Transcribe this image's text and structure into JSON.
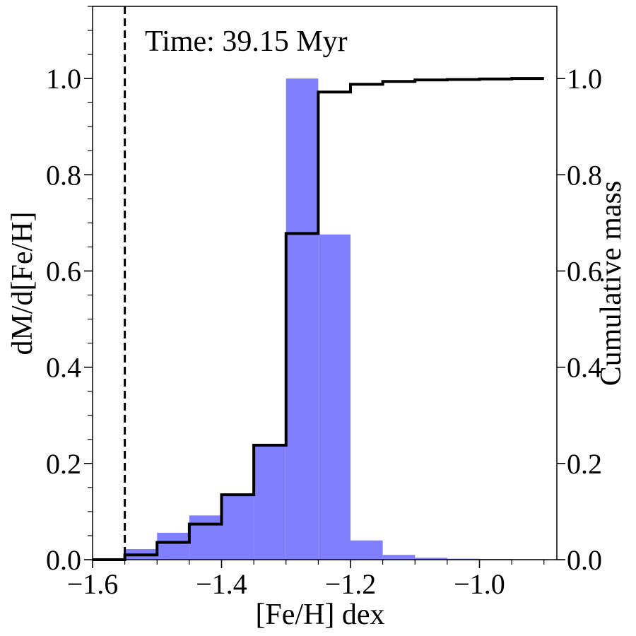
{
  "chart_data": {
    "type": "bar",
    "annotation": "Time: 39.15 Myr",
    "xlabel": "[Fe/H] dex",
    "ylabel": "dM/d[Fe/H]",
    "ylabel_right": "Cumulative mass",
    "xlim": [
      -1.6,
      -0.88
    ],
    "ylim": [
      0,
      1.15
    ],
    "ylim_right": [
      0,
      1.15
    ],
    "x_ticks": [
      -1.6,
      -1.4,
      -1.2,
      -1.0
    ],
    "x_tick_labels": [
      "−1.6",
      "−1.4",
      "−1.2",
      "−1.0"
    ],
    "y_ticks": [
      0.0,
      0.2,
      0.4,
      0.6,
      0.8,
      1.0
    ],
    "y_tick_labels": [
      "0.0",
      "0.2",
      "0.4",
      "0.6",
      "0.8",
      "1.0"
    ],
    "y_right_ticks": [
      0.0,
      0.2,
      0.4,
      0.6,
      0.8,
      1.0
    ],
    "y_right_tick_labels": [
      "0.0",
      "0.2",
      "0.4",
      "0.6",
      "0.8",
      "1.0"
    ],
    "bin_edges": [
      -1.6,
      -1.55,
      -1.5,
      -1.45,
      -1.4,
      -1.35,
      -1.3,
      -1.25,
      -1.2,
      -1.15,
      -1.1,
      -1.05,
      -1.0,
      -0.95,
      -0.9
    ],
    "histogram_values": [
      0.0,
      0.022,
      0.056,
      0.092,
      0.135,
      0.238,
      1.0,
      0.676,
      0.04,
      0.01,
      0.004,
      0.002,
      0.0015,
      0.001
    ],
    "cumulative_values": [
      0.0,
      0.01,
      0.036,
      0.074,
      0.135,
      0.238,
      0.678,
      0.972,
      0.988,
      0.994,
      0.997,
      0.998,
      0.999,
      1.0
    ],
    "vline_x": -1.55,
    "colors": {
      "histogram": "#8080ff",
      "cumulative": "#000000",
      "vline": "#000000"
    }
  }
}
